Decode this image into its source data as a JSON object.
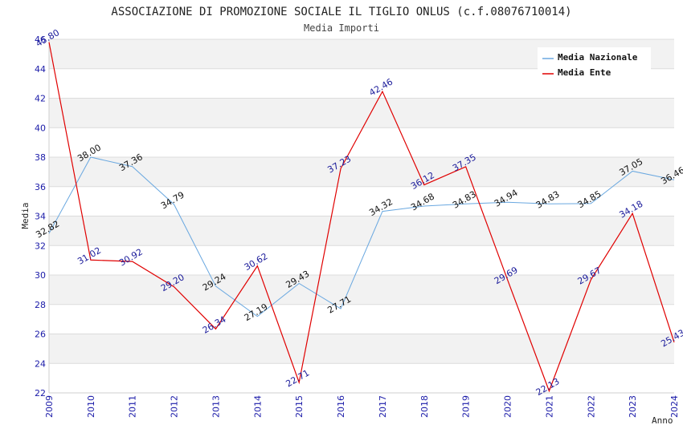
{
  "chart_data": {
    "type": "line",
    "title": "ASSOCIAZIONE DI PROMOZIONE SOCIALE IL TIGLIO ONLUS (c.f.08076710014)",
    "subtitle": "Media Importi",
    "xlabel": "Anno",
    "ylabel": "Media",
    "ylim": [
      22,
      46
    ],
    "y_ticks": [
      22,
      24,
      26,
      28,
      30,
      32,
      34,
      36,
      38,
      40,
      42,
      44,
      46
    ],
    "categories": [
      "2009",
      "2010",
      "2011",
      "2012",
      "2013",
      "2014",
      "2015",
      "2016",
      "2017",
      "2018",
      "2019",
      "2020",
      "2021",
      "2022",
      "2023",
      "2024"
    ],
    "legend_position": "top-right",
    "grid": true,
    "series": [
      {
        "name": "Media Nazionale",
        "color": "#6aa8e0",
        "values": [
          32.82,
          38.0,
          37.36,
          34.79,
          29.24,
          27.19,
          29.43,
          27.71,
          34.32,
          34.68,
          34.83,
          34.94,
          34.83,
          34.85,
          37.05,
          36.46
        ],
        "labels": [
          "32.82",
          "38.00",
          "37.36",
          "34.79",
          "29.24",
          "27.19",
          "29.43",
          "27.71",
          "34.32",
          "34.68",
          "34.83",
          "34.94",
          "34.83",
          "34.85",
          "37.05",
          "36.46"
        ]
      },
      {
        "name": "Media Ente",
        "color": "#e00000",
        "values": [
          45.8,
          31.02,
          30.92,
          29.2,
          26.34,
          30.62,
          22.71,
          37.23,
          42.46,
          36.12,
          37.35,
          29.69,
          22.13,
          29.67,
          34.18,
          25.43
        ],
        "labels": [
          "45.80",
          "31.02",
          "30.92",
          "29.20",
          "26.34",
          "30.62",
          "22.71",
          "37.23",
          "42.46",
          "36.12",
          "37.35",
          "29.69",
          "22.13",
          "29.67",
          "34.18",
          "25.43"
        ]
      }
    ]
  }
}
